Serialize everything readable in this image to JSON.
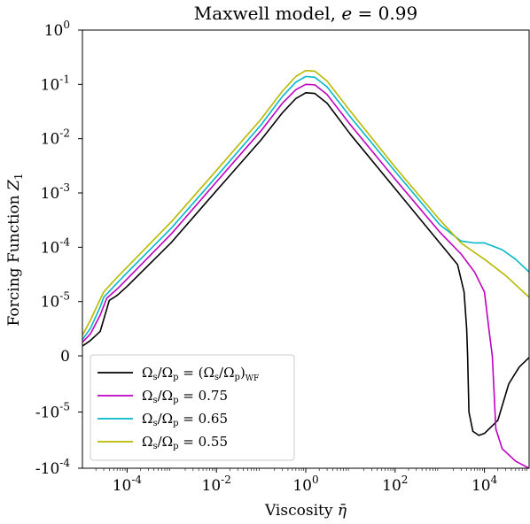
{
  "chart_data": {
    "type": "line",
    "title": "Maxwell model, e = 0.99",
    "xlabel": "Viscosity η̄",
    "ylabel": "Forcing Function Z₁",
    "x_scale": "log",
    "y_scale": "symlog",
    "xlim": [
      1e-05,
      100000
    ],
    "ylim": [
      -0.0001,
      1
    ],
    "grid": false,
    "legend_position": "lower-left",
    "x_ticks": [
      {
        "value": 0.0001,
        "base": "10",
        "exp": "-4"
      },
      {
        "value": 0.01,
        "base": "10",
        "exp": "-2"
      },
      {
        "value": 1,
        "base": "10",
        "exp": "0"
      },
      {
        "value": 100,
        "base": "10",
        "exp": "2"
      },
      {
        "value": 10000,
        "base": "10",
        "exp": "4"
      }
    ],
    "y_ticks": [
      {
        "value": 1,
        "base": "10",
        "exp": "0"
      },
      {
        "value": 0.1,
        "base": "10",
        "exp": "-1"
      },
      {
        "value": 0.01,
        "base": "10",
        "exp": "-2"
      },
      {
        "value": 0.001,
        "base": "10",
        "exp": "-3"
      },
      {
        "value": 0.0001,
        "base": "10",
        "exp": "-4"
      },
      {
        "value": 1e-05,
        "base": "10",
        "exp": "-5"
      },
      {
        "value": 0,
        "base": "0",
        "exp": ""
      },
      {
        "value": -1e-05,
        "base": "-10",
        "exp": "-5"
      },
      {
        "value": -0.0001,
        "base": "-10",
        "exp": "-4"
      }
    ],
    "series": [
      {
        "name": "Ωs/Ωp = (Ωs/Ωp)WF",
        "color": "#000000",
        "points": [
          [
            1e-05,
            1.8e-06
          ],
          [
            1.5e-05,
            2.8e-06
          ],
          [
            2.5e-05,
            4.5e-06
          ],
          [
            4e-05,
            1.05e-05
          ],
          [
            6e-05,
            1.3e-05
          ],
          [
            0.0001,
            1.9e-05
          ],
          [
            0.001,
            0.000125
          ],
          [
            0.01,
            0.0011
          ],
          [
            0.1,
            0.0095
          ],
          [
            0.3,
            0.03
          ],
          [
            0.6,
            0.055
          ],
          [
            1,
            0.07
          ],
          [
            1.6,
            0.068
          ],
          [
            3,
            0.045
          ],
          [
            10,
            0.012
          ],
          [
            100,
            0.0012
          ],
          [
            1000,
            0.00012
          ],
          [
            2500,
            4.8e-05
          ],
          [
            3500,
            1.5e-05
          ],
          [
            4000,
            5e-06
          ],
          [
            4200,
            0
          ],
          [
            4500,
            -1e-05
          ],
          [
            5500,
            -2.2e-05
          ],
          [
            7500,
            -2.6e-05
          ],
          [
            10000,
            -2.4e-05
          ],
          [
            20000,
            -1.4e-05
          ],
          [
            35000,
            -5e-06
          ],
          [
            60000,
            -2e-06
          ],
          [
            100000,
            -3e-07
          ]
        ]
      },
      {
        "name": "Ωs/Ωp = 0.75",
        "color": "#c000c0",
        "points": [
          [
            1e-05,
            2.5e-06
          ],
          [
            1.5e-05,
            4e-06
          ],
          [
            2.5e-05,
            7.5e-06
          ],
          [
            3.5e-05,
            1.15e-05
          ],
          [
            6e-05,
            1.7e-05
          ],
          [
            0.0001,
            2.6e-05
          ],
          [
            0.001,
            0.00018
          ],
          [
            0.01,
            0.0016
          ],
          [
            0.1,
            0.014
          ],
          [
            0.3,
            0.045
          ],
          [
            0.6,
            0.08
          ],
          [
            1,
            0.1
          ],
          [
            1.6,
            0.098
          ],
          [
            3,
            0.065
          ],
          [
            10,
            0.018
          ],
          [
            100,
            0.0018
          ],
          [
            1000,
            0.00019
          ],
          [
            3000,
            7.5e-05
          ],
          [
            6000,
            3.5e-05
          ],
          [
            10000,
            1.5e-05
          ],
          [
            13000,
            4e-06
          ],
          [
            15000,
            0
          ],
          [
            18000,
            -2e-05
          ],
          [
            25000,
            -4.5e-05
          ],
          [
            50000,
            -7.5e-05
          ],
          [
            100000,
            -0.0001
          ]
        ]
      },
      {
        "name": "Ωs/Ωp = 0.65",
        "color": "#00b8c8",
        "points": [
          [
            1e-05,
            3e-06
          ],
          [
            1.5e-05,
            5e-06
          ],
          [
            2.5e-05,
            9e-06
          ],
          [
            3e-05,
            1.2e-05
          ],
          [
            6e-05,
            2.2e-05
          ],
          [
            0.0001,
            3.4e-05
          ],
          [
            0.001,
            0.00023
          ],
          [
            0.01,
            0.002
          ],
          [
            0.1,
            0.018
          ],
          [
            0.3,
            0.06
          ],
          [
            0.6,
            0.11
          ],
          [
            1,
            0.14
          ],
          [
            1.6,
            0.135
          ],
          [
            3,
            0.09
          ],
          [
            10,
            0.025
          ],
          [
            100,
            0.0025
          ],
          [
            1000,
            0.00026
          ],
          [
            3000,
            0.00013
          ],
          [
            6000,
            0.00012
          ],
          [
            10000,
            0.00012
          ],
          [
            25000,
            9e-05
          ],
          [
            50000,
            6e-05
          ],
          [
            100000,
            3.5e-05
          ]
        ]
      },
      {
        "name": "Ωs/Ωp = 0.55",
        "color": "#b8b800",
        "points": [
          [
            1e-05,
            3.8e-06
          ],
          [
            1.5e-05,
            6.5e-06
          ],
          [
            2.5e-05,
            1.1e-05
          ],
          [
            3e-05,
            1.5e-05
          ],
          [
            6e-05,
            2.8e-05
          ],
          [
            0.0001,
            4.3e-05
          ],
          [
            0.001,
            0.0003
          ],
          [
            0.01,
            0.0026
          ],
          [
            0.1,
            0.023
          ],
          [
            0.3,
            0.075
          ],
          [
            0.6,
            0.14
          ],
          [
            1,
            0.18
          ],
          [
            1.6,
            0.175
          ],
          [
            3,
            0.115
          ],
          [
            10,
            0.032
          ],
          [
            100,
            0.003
          ],
          [
            1000,
            0.00032
          ],
          [
            3000,
            0.00012
          ],
          [
            6000,
            8e-05
          ],
          [
            10000,
            6e-05
          ],
          [
            30000,
            3e-05
          ],
          [
            100000,
            1.2e-05
          ]
        ]
      }
    ]
  },
  "title_parts": {
    "main": "Maxwell model, ",
    "e_sym": "e",
    "eq": " = 0.99"
  },
  "xlabel_parts": {
    "main": "Viscosity ",
    "sym": "η̄"
  },
  "ylabel_parts": {
    "main": "Forcing Function ",
    "sym": "Z",
    "sub": "1"
  },
  "legend": [
    {
      "om": "Ω",
      "s": "s",
      "sl": "/",
      "p": "p",
      "eq": " = ",
      "tail_pre": "(Ω",
      "tail_s": "s",
      "tail_mid": "/Ω",
      "tail_p": "p",
      "tail_close": ")",
      "tail_sub": "WF",
      "value": ""
    },
    {
      "om": "Ω",
      "s": "s",
      "sl": "/",
      "p": "p",
      "eq": " = ",
      "value": "0.75"
    },
    {
      "om": "Ω",
      "s": "s",
      "sl": "/",
      "p": "p",
      "eq": " = ",
      "value": "0.65"
    },
    {
      "om": "Ω",
      "s": "s",
      "sl": "/",
      "p": "p",
      "eq": " = ",
      "value": "0.55"
    }
  ]
}
